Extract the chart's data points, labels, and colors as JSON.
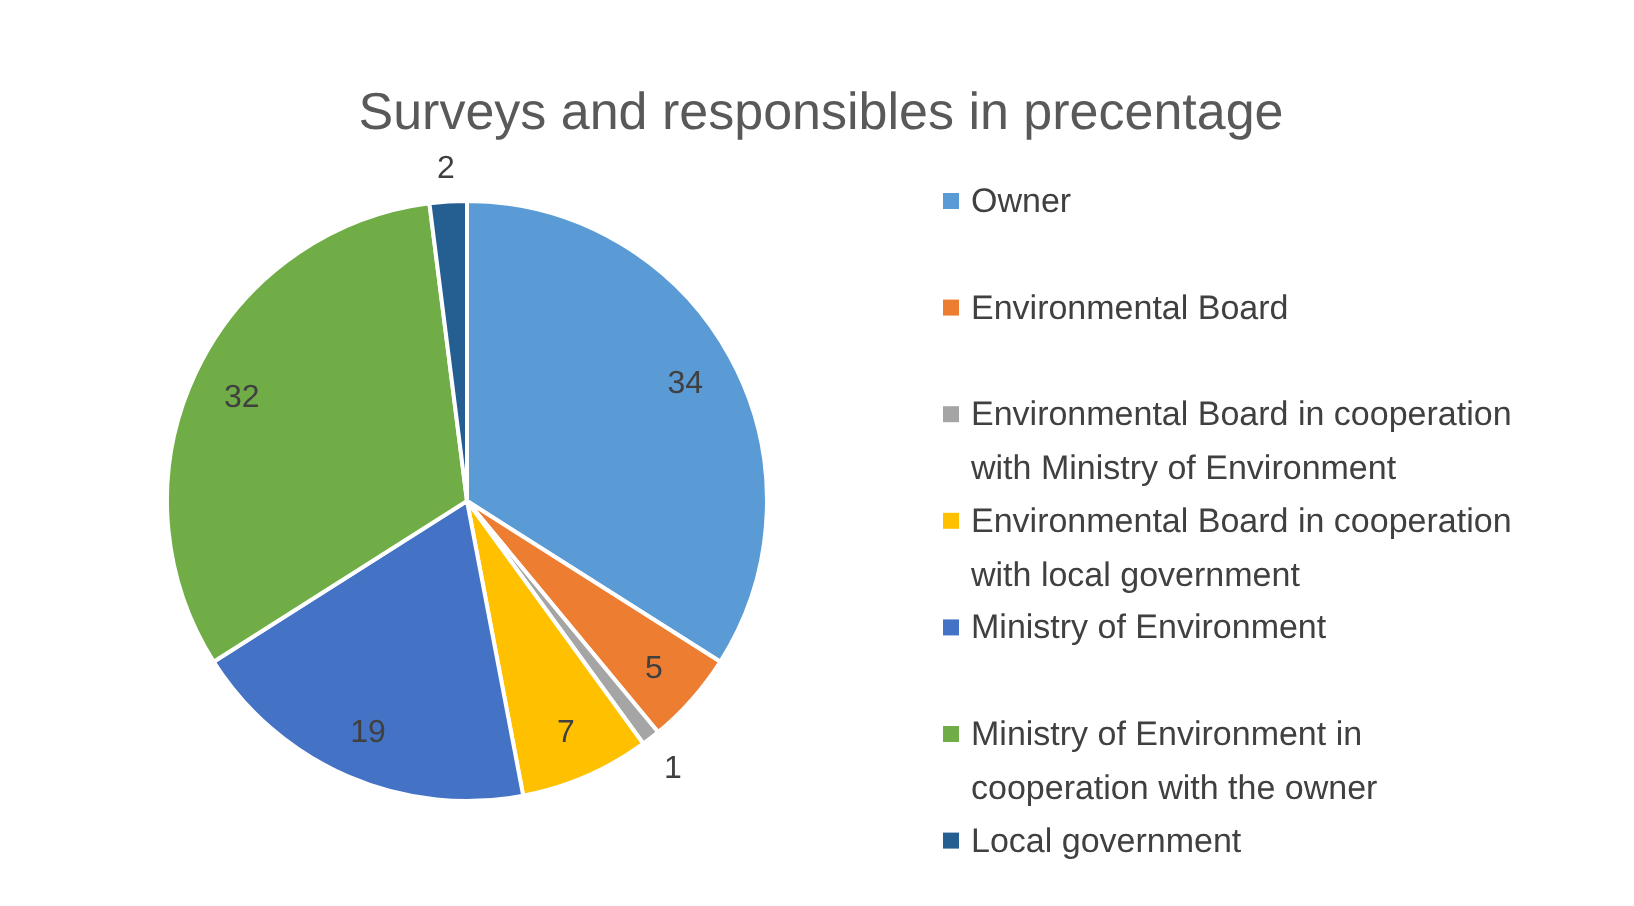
{
  "chart_data": {
    "type": "pie",
    "title": "Surveys and responsibles in precentage",
    "categories": [
      "Owner",
      "Environmental Board",
      "Environmental Board in cooperation with Ministry of Environment",
      "Environmental Board in cooperation with local government",
      "Ministry of Environment",
      "Ministry of Environment in cooperation with the owner",
      "Local government"
    ],
    "values": [
      34,
      5,
      1,
      7,
      19,
      32,
      2
    ],
    "colors": [
      "#5b9bd5",
      "#ed7d31",
      "#a5a5a5",
      "#ffc000",
      "#4472c4",
      "#70ad47",
      "#255e91"
    ],
    "data_labels": true,
    "legend": "right"
  }
}
